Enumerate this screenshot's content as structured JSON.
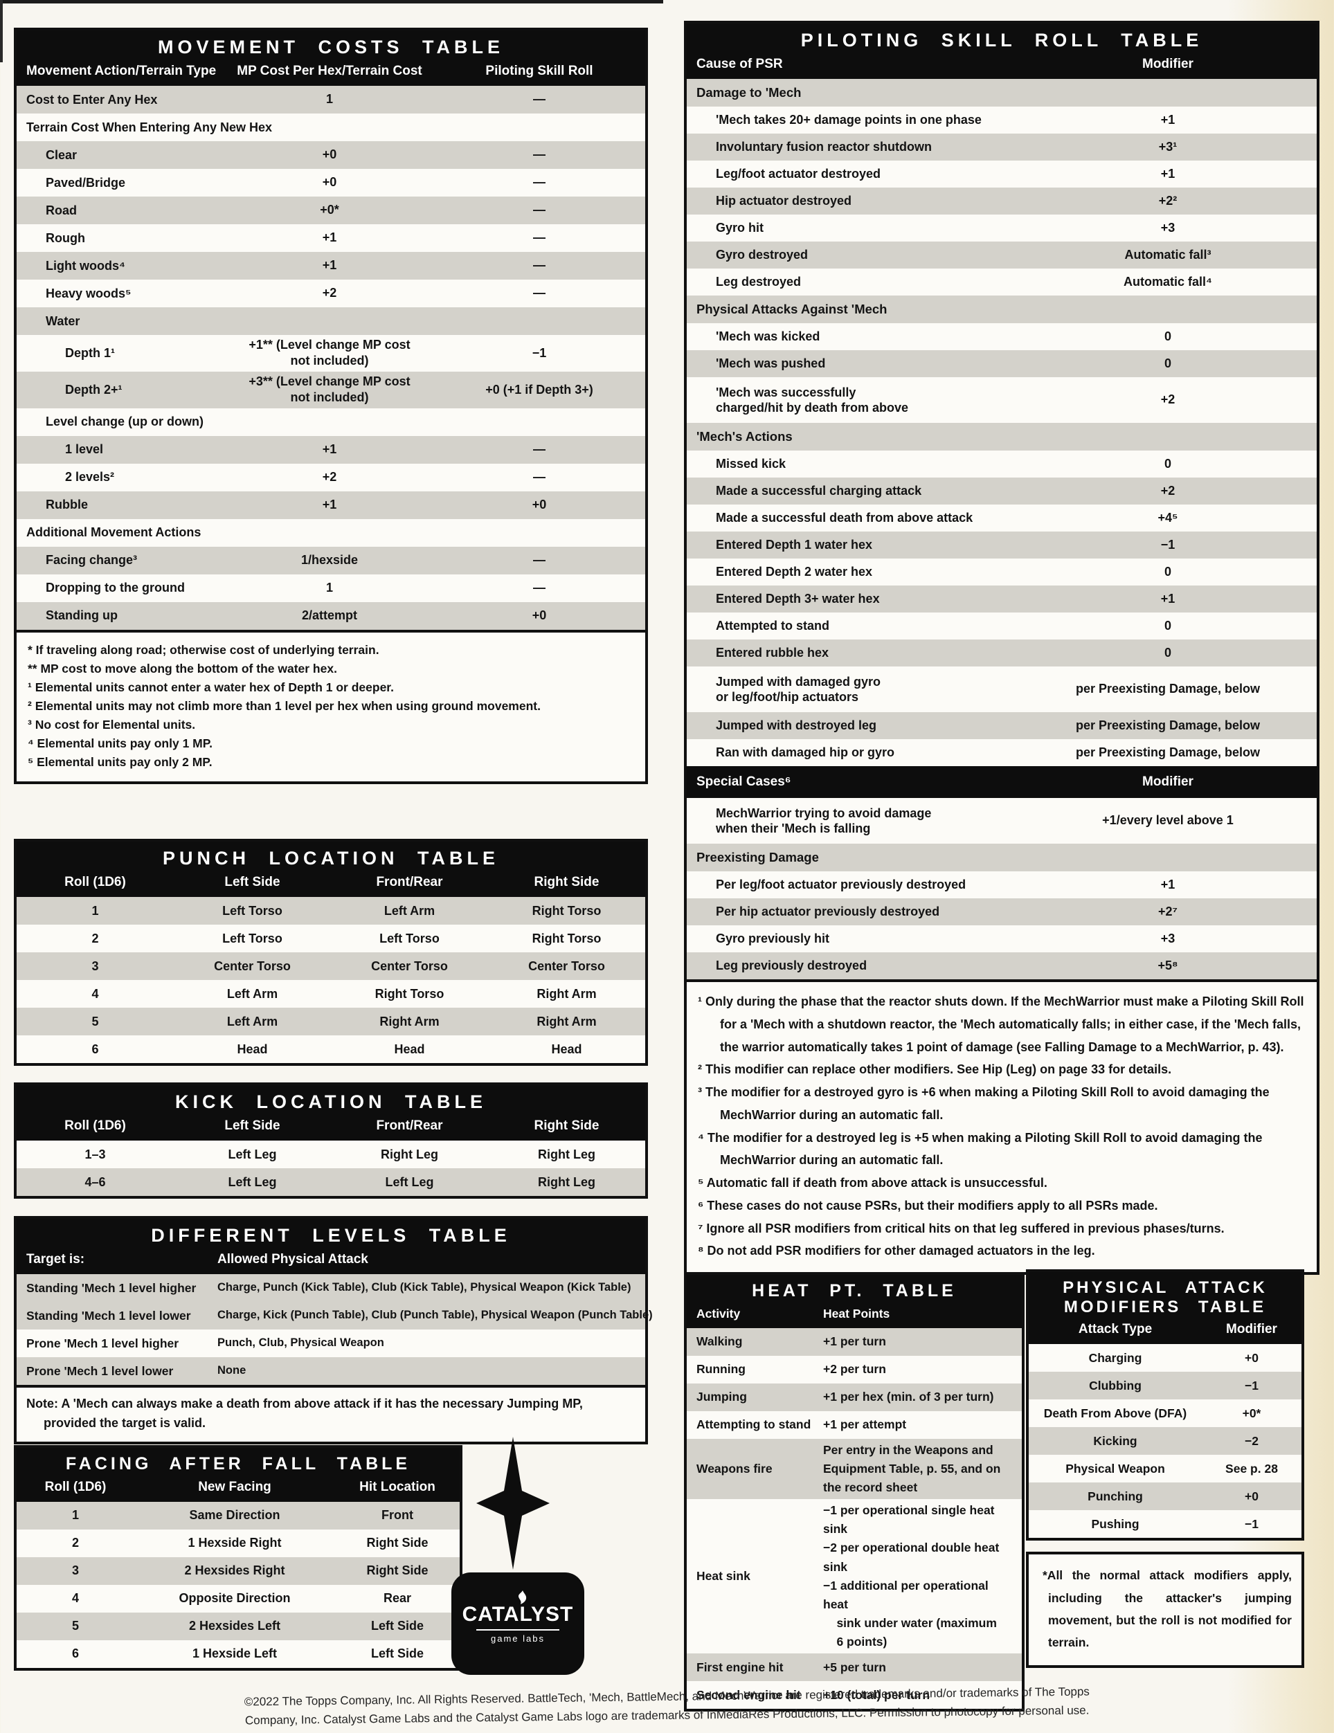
{
  "colors": {
    "row_stripe": "#d4d2cb",
    "header_band": "#0d0d0d",
    "page_bg": "#f8f6f0",
    "cream_edge": "#eee3c4"
  },
  "movement_costs": {
    "title": "MOVEMENT COSTS TABLE",
    "headers": [
      "Movement Action/Terrain Type",
      "MP Cost Per Hex/Terrain Cost",
      "Piloting Skill Roll"
    ],
    "rows": [
      {
        "label": "Cost to Enter Any Hex",
        "indent": 0,
        "cost": "1",
        "psr": "—",
        "shade": true
      },
      {
        "label": "Terrain Cost When Entering Any New Hex",
        "indent": 0,
        "cost": "",
        "psr": "",
        "shade": false
      },
      {
        "label": "Clear",
        "indent": 1,
        "cost": "+0",
        "psr": "—",
        "shade": true
      },
      {
        "label": "Paved/Bridge",
        "indent": 1,
        "cost": "+0",
        "psr": "—",
        "shade": false
      },
      {
        "label": "Road",
        "indent": 1,
        "cost": "+0*",
        "psr": "—",
        "shade": true
      },
      {
        "label": "Rough",
        "indent": 1,
        "cost": "+1",
        "psr": "—",
        "shade": false
      },
      {
        "label": "Light woods⁴",
        "indent": 1,
        "cost": "+1",
        "psr": "—",
        "shade": true
      },
      {
        "label": "Heavy woods⁵",
        "indent": 1,
        "cost": "+2",
        "psr": "—",
        "shade": false
      },
      {
        "label": "Water",
        "indent": 1,
        "cost": "",
        "psr": "",
        "shade": true
      },
      {
        "label": "Depth 1¹",
        "indent": 2,
        "cost": "+1** (Level change MP cost\nnot included)",
        "psr": "−1",
        "shade": false
      },
      {
        "label": "Depth 2+¹",
        "indent": 2,
        "cost": "+3** (Level change MP cost\nnot included)",
        "psr": "+0 (+1 if Depth 3+)",
        "shade": true
      },
      {
        "label": "Level change (up or down)",
        "indent": 1,
        "cost": "",
        "psr": "",
        "shade": false
      },
      {
        "label": "1 level",
        "indent": 2,
        "cost": "+1",
        "psr": "—",
        "shade": true
      },
      {
        "label": "2 levels²",
        "indent": 2,
        "cost": "+2",
        "psr": "—",
        "shade": false
      },
      {
        "label": "Rubble",
        "indent": 1,
        "cost": "+1",
        "psr": "+0",
        "shade": true
      },
      {
        "label": "Additional Movement Actions",
        "indent": 0,
        "cost": "",
        "psr": "",
        "shade": false
      },
      {
        "label": "Facing change³",
        "indent": 1,
        "cost": "1/hexside",
        "psr": "—",
        "shade": true
      },
      {
        "label": "Dropping to the ground",
        "indent": 1,
        "cost": "1",
        "psr": "—",
        "shade": false
      },
      {
        "label": "Standing up",
        "indent": 1,
        "cost": "2/attempt",
        "psr": "+0",
        "shade": true
      }
    ],
    "footnotes": [
      "* If traveling along road; otherwise cost of underlying terrain.",
      "** MP cost to move along the bottom of the water hex.",
      "¹ Elemental units cannot enter a water hex of Depth 1 or deeper.",
      "² Elemental units may not climb more than 1 level per hex when using ground movement.",
      "³ No cost for Elemental units.",
      "⁴ Elemental units pay only 1 MP.",
      "⁵ Elemental units pay only 2 MP."
    ]
  },
  "psr": {
    "title": "PILOTING SKILL ROLL TABLE",
    "headers": [
      "Cause of PSR",
      "Modifier"
    ],
    "rows": [
      {
        "type": "section",
        "label": "Damage to 'Mech"
      },
      {
        "label": "'Mech takes 20+ damage points in one phase",
        "value": "+1",
        "shade": false
      },
      {
        "label": "Involuntary fusion reactor shutdown",
        "value": "+3¹",
        "shade": true
      },
      {
        "label": "Leg/foot actuator destroyed",
        "value": "+1",
        "shade": false
      },
      {
        "label": "Hip actuator destroyed",
        "value": "+2²",
        "shade": true
      },
      {
        "label": "Gyro hit",
        "value": "+3",
        "shade": false
      },
      {
        "label": "Gyro destroyed",
        "value": "Automatic fall³",
        "shade": true
      },
      {
        "label": "Leg destroyed",
        "value": "Automatic fall⁴",
        "shade": false
      },
      {
        "type": "section",
        "label": "Physical Attacks Against 'Mech"
      },
      {
        "label": "'Mech was kicked",
        "value": "0",
        "shade": false
      },
      {
        "label": "'Mech was pushed",
        "value": "0",
        "shade": true
      },
      {
        "label": "'Mech was successfully\ncharged/hit by death from above",
        "value": "+2",
        "shade": false,
        "tall": true
      },
      {
        "type": "section",
        "label": "'Mech's Actions"
      },
      {
        "label": "Missed kick",
        "value": "0",
        "shade": false
      },
      {
        "label": "Made a successful charging attack",
        "value": "+2",
        "shade": true
      },
      {
        "label": "Made a successful death from above attack",
        "value": "+4⁵",
        "shade": false
      },
      {
        "label": "Entered Depth 1 water hex",
        "value": "−1",
        "shade": true
      },
      {
        "label": "Entered Depth 2 water hex",
        "value": "0",
        "shade": false
      },
      {
        "label": "Entered Depth 3+ water hex",
        "value": "+1",
        "shade": true
      },
      {
        "label": "Attempted to stand",
        "value": "0",
        "shade": false
      },
      {
        "label": "Entered rubble hex",
        "value": "0",
        "shade": true
      },
      {
        "label": "Jumped with damaged gyro\nor leg/foot/hip actuators",
        "value": "per Preexisting Damage, below",
        "shade": false,
        "tall": true
      },
      {
        "label": "Jumped with destroyed leg",
        "value": "per Preexisting Damage, below",
        "shade": true
      },
      {
        "label": "Ran with damaged hip or gyro",
        "value": "per Preexisting Damage, below",
        "shade": false
      },
      {
        "type": "band",
        "label": "Special Cases⁶",
        "value": "Modifier"
      },
      {
        "label": "MechWarrior trying to avoid damage\nwhen their 'Mech is falling",
        "value": "+1/every level above 1",
        "shade": false,
        "tall": true
      },
      {
        "type": "section",
        "label": "Preexisting Damage"
      },
      {
        "label": "Per leg/foot actuator previously destroyed",
        "value": "+1",
        "shade": false
      },
      {
        "label": "Per hip actuator previously destroyed",
        "value": "+2⁷",
        "shade": true
      },
      {
        "label": "Gyro previously hit",
        "value": "+3",
        "shade": false
      },
      {
        "label": "Leg previously destroyed",
        "value": "+5⁸",
        "shade": true
      }
    ],
    "footnotes": [
      "¹ Only during the phase that the reactor shuts down. If the MechWarrior must make a Piloting Skill Roll for a 'Mech with a shutdown reactor, the 'Mech automatically falls; in either case, if the 'Mech falls, the warrior automatically takes 1 point of damage (see Falling Damage to a MechWarrior, p. 43).",
      "² This modifier can replace other modifiers. See Hip (Leg) on page 33 for details.",
      "³ The modifier for a destroyed gyro is +6 when making a Piloting Skill Roll to avoid damaging the MechWarrior during an automatic fall.",
      "⁴ The modifier for a destroyed leg is +5 when making a Piloting Skill Roll to avoid damaging the MechWarrior during an automatic fall.",
      "⁵ Automatic fall if death from above attack is unsuccessful.",
      "⁶ These cases do not cause PSRs, but their modifiers apply to all PSRs made.",
      "⁷ Ignore all PSR modifiers from critical hits on that leg suffered in previous phases/turns.",
      "⁸ Do not add PSR modifiers for other damaged actuators in the leg."
    ]
  },
  "punch": {
    "title": "PUNCH LOCATION TABLE",
    "headers": [
      "Roll (1D6)",
      "Left Side",
      "Front/Rear",
      "Right Side"
    ],
    "rows": [
      {
        "cells": [
          "1",
          "Left Torso",
          "Left Arm",
          "Right Torso"
        ],
        "shade": true
      },
      {
        "cells": [
          "2",
          "Left Torso",
          "Left Torso",
          "Right Torso"
        ],
        "shade": false
      },
      {
        "cells": [
          "3",
          "Center Torso",
          "Center Torso",
          "Center Torso"
        ],
        "shade": true
      },
      {
        "cells": [
          "4",
          "Left Arm",
          "Right Torso",
          "Right Arm"
        ],
        "shade": false
      },
      {
        "cells": [
          "5",
          "Left Arm",
          "Right Arm",
          "Right Arm"
        ],
        "shade": true
      },
      {
        "cells": [
          "6",
          "Head",
          "Head",
          "Head"
        ],
        "shade": false
      }
    ]
  },
  "kick": {
    "title": "KICK LOCATION TABLE",
    "headers": [
      "Roll (1D6)",
      "Left Side",
      "Front/Rear",
      "Right Side"
    ],
    "rows": [
      {
        "cells": [
          "1–3",
          "Left Leg",
          "Right Leg",
          "Right Leg"
        ],
        "shade": false
      },
      {
        "cells": [
          "4–6",
          "Left Leg",
          "Left Leg",
          "Right Leg"
        ],
        "shade": true
      }
    ]
  },
  "levels": {
    "title": "DIFFERENT LEVELS TABLE",
    "headers": [
      "Target is:",
      "Allowed Physical Attack"
    ],
    "rows": [
      {
        "label": "Standing 'Mech 1 level higher",
        "value": "Charge, Punch (Kick Table), Club (Kick Table), Physical Weapon (Kick Table)",
        "shade": true
      },
      {
        "label": "Standing 'Mech 1 level lower",
        "value": "Charge, Kick (Punch Table), Club (Punch Table), Physical Weapon (Punch Table)",
        "shade": true
      },
      {
        "label": "Prone 'Mech 1 level higher",
        "value": "Punch, Club, Physical Weapon",
        "shade": false
      },
      {
        "label": "Prone 'Mech 1 level lower",
        "value": "None",
        "shade": true
      }
    ],
    "note": "Note: A 'Mech can always make a death from above attack if it has the necessary Jumping MP,\n     provided the target is valid."
  },
  "facing": {
    "title": "FACING AFTER FALL TABLE",
    "headers": [
      "Roll (1D6)",
      "New Facing",
      "Hit Location"
    ],
    "rows": [
      {
        "cells": [
          "1",
          "Same Direction",
          "Front"
        ],
        "shade": true
      },
      {
        "cells": [
          "2",
          "1 Hexside Right",
          "Right Side"
        ],
        "shade": false
      },
      {
        "cells": [
          "3",
          "2 Hexsides Right",
          "Right Side"
        ],
        "shade": true
      },
      {
        "cells": [
          "4",
          "Opposite Direction",
          "Rear"
        ],
        "shade": false
      },
      {
        "cells": [
          "5",
          "2 Hexsides Left",
          "Left Side"
        ],
        "shade": true
      },
      {
        "cells": [
          "6",
          "1 Hexside Left",
          "Left Side"
        ],
        "shade": false
      }
    ]
  },
  "heat": {
    "title": "HEAT PT. TABLE",
    "headers": [
      "Activity",
      "Heat Points"
    ],
    "rows": [
      {
        "label": "Walking",
        "value": "+1 per turn",
        "shade": true
      },
      {
        "label": "Running",
        "value": "+2 per turn",
        "shade": false
      },
      {
        "label": "Jumping",
        "value": "+1 per hex (min. of 3 per turn)",
        "shade": true
      },
      {
        "label": "Attempting to stand",
        "value": "+1 per attempt",
        "shade": false
      },
      {
        "label": "Weapons fire",
        "value": "Per entry in the Weapons and Equipment Table, p. 55, and on the record sheet",
        "shade": true
      },
      {
        "label": "Heat sink",
        "value": "−1 per operational single heat sink\n−2 per operational double heat sink\n−1 additional per operational heat\n    sink under water (maximum\n    6 points)",
        "shade": false
      },
      {
        "label": "First engine hit",
        "value": "+5 per turn",
        "shade": true
      },
      {
        "label": "Second engine hit",
        "value": "+10 (total) per turn",
        "shade": false
      }
    ]
  },
  "physical": {
    "title": "PHYSICAL ATTACK MODIFIERS TABLE",
    "headers": [
      "Attack Type",
      "Modifier"
    ],
    "rows": [
      {
        "label": "Charging",
        "value": "+0",
        "shade": false
      },
      {
        "label": "Clubbing",
        "value": "−1",
        "shade": true
      },
      {
        "label": "Death From Above (DFA)",
        "value": "+0*",
        "shade": false
      },
      {
        "label": "Kicking",
        "value": "−2",
        "shade": true
      },
      {
        "label": "Physical Weapon",
        "value": "See p. 28",
        "shade": false
      },
      {
        "label": "Punching",
        "value": "+0",
        "shade": true
      },
      {
        "label": "Pushing",
        "value": "−1",
        "shade": false
      }
    ],
    "note": "*All the normal attack modifiers apply, including the attacker's jumping movement, but the roll is not modified for terrain."
  },
  "logo": {
    "name": "CATALYST",
    "sub": "game labs"
  },
  "page": {
    "copyright_line1": "©2022 The Topps Company, Inc. All Rights Reserved. BattleTech, 'Mech, BattleMech, and MechWarrior are registered trademarks and/or trademarks of The Topps",
    "copyright_line2": "Company, Inc. Catalyst Game Labs and the Catalyst Game Labs logo are trademarks of InMediaRes Productions, LLC. Permission to photocopy for personal use."
  }
}
